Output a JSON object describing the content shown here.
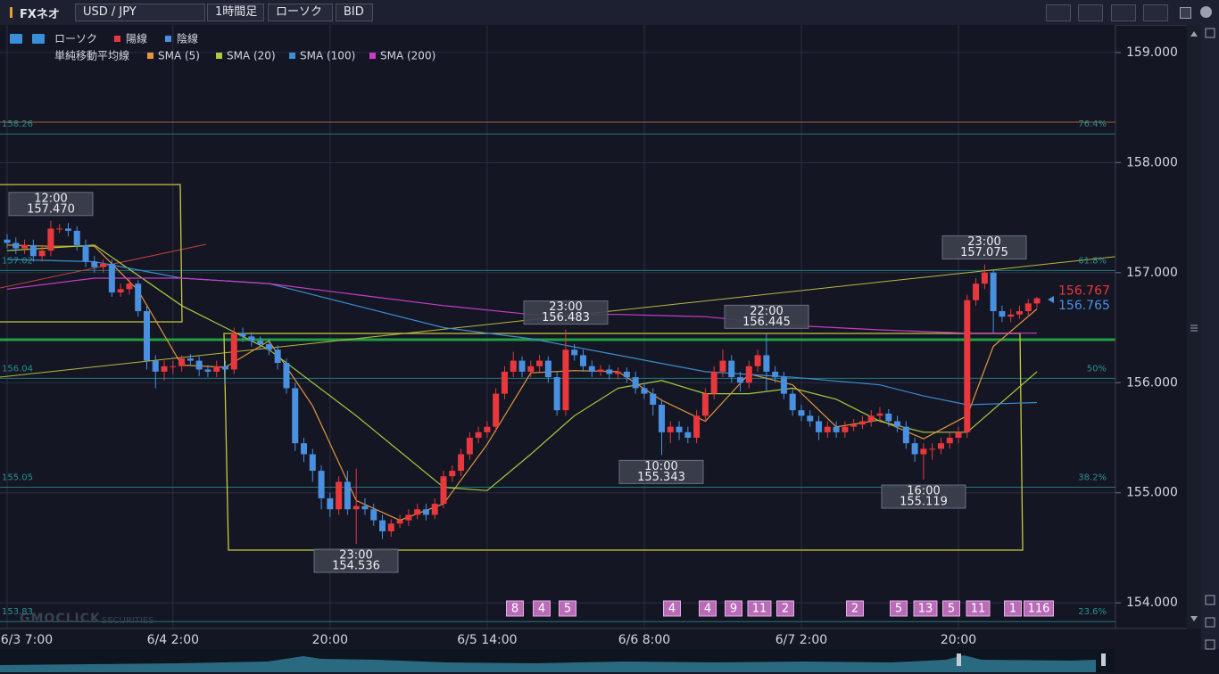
{
  "toolbar": {
    "app": "FXネオ",
    "pair": "USD / JPY",
    "timeframe": "1時間足",
    "chart_style": "ローソク",
    "price_type": "BID"
  },
  "watermark": {
    "brand": "GMOCLICK",
    "sub": "SECURITIES"
  },
  "chart_data": {
    "type": "candlestick",
    "candle_label": "ローソク",
    "up": {
      "name": "陽線",
      "color": "#e8383d"
    },
    "down": {
      "name": "陰線",
      "color": "#4a90e0"
    },
    "categories": [
      "6/3 7:00",
      null,
      null,
      null,
      null,
      null,
      null,
      null,
      null,
      null,
      null,
      null,
      null,
      null,
      null,
      null,
      null,
      null,
      null,
      "6/4 2:00",
      null,
      null,
      null,
      null,
      null,
      null,
      null,
      null,
      null,
      null,
      null,
      null,
      null,
      null,
      null,
      null,
      null,
      "20:00",
      null,
      null,
      null,
      null,
      null,
      null,
      null,
      null,
      null,
      null,
      null,
      null,
      null,
      null,
      null,
      null,
      null,
      "6/5 14:00",
      null,
      null,
      null,
      null,
      null,
      null,
      null,
      null,
      null,
      null,
      null,
      null,
      null,
      null,
      null,
      null,
      null,
      "6/6 8:00",
      null,
      null,
      null,
      null,
      null,
      null,
      null,
      null,
      null,
      null,
      null,
      null,
      null,
      null,
      null,
      null,
      null,
      "6/7 2:00",
      null,
      null,
      null,
      null,
      null,
      null,
      null,
      null,
      null,
      null,
      null,
      null,
      null,
      null,
      null,
      null,
      null,
      "20:00",
      null,
      null,
      null,
      null,
      null,
      null,
      null,
      null,
      null
    ],
    "open": [
      157.3,
      157.27,
      157.22,
      157.25,
      157.15,
      157.2,
      157.4,
      157.4,
      157.38,
      157.25,
      157.1,
      157.05,
      157.08,
      156.82,
      156.85,
      156.9,
      156.65,
      156.2,
      156.1,
      156.15,
      156.15,
      156.22,
      156.2,
      156.12,
      156.1,
      156.15,
      156.12,
      156.45,
      156.42,
      156.38,
      156.35,
      156.3,
      156.18,
      155.95,
      155.45,
      155.35,
      155.2,
      154.95,
      154.85,
      155.1,
      154.85,
      154.88,
      154.85,
      154.75,
      154.65,
      154.72,
      154.75,
      154.8,
      154.85,
      154.8,
      154.9,
      155.15,
      155.2,
      155.35,
      155.5,
      155.55,
      155.6,
      155.9,
      156.1,
      156.2,
      156.1,
      156.15,
      156.2,
      156.05,
      155.75,
      156.3,
      156.25,
      156.15,
      156.1,
      156.12,
      156.08,
      156.1,
      156.05,
      155.95,
      155.9,
      155.8,
      155.55,
      155.6,
      155.55,
      155.5,
      155.7,
      155.9,
      156.1,
      156.2,
      156.05,
      156.0,
      156.15,
      156.25,
      156.1,
      156.05,
      155.9,
      155.75,
      155.7,
      155.65,
      155.55,
      155.6,
      155.55,
      155.6,
      155.62,
      155.65,
      155.7,
      155.72,
      155.65,
      155.6,
      155.45,
      155.35,
      155.4,
      155.4,
      155.45,
      155.5,
      155.55,
      156.75,
      156.9,
      157.0,
      156.65,
      156.6,
      156.62,
      156.65,
      156.72
    ],
    "high": [
      157.35,
      157.32,
      157.3,
      157.3,
      157.25,
      157.47,
      157.44,
      157.45,
      157.42,
      157.3,
      157.15,
      157.12,
      157.12,
      156.9,
      156.95,
      156.93,
      156.7,
      156.25,
      156.2,
      156.2,
      156.25,
      156.26,
      156.24,
      156.16,
      156.2,
      156.2,
      156.5,
      156.5,
      156.46,
      156.42,
      156.4,
      156.34,
      156.22,
      156.0,
      155.5,
      155.4,
      155.25,
      155.0,
      155.15,
      155.2,
      155.22,
      154.95,
      154.9,
      154.8,
      154.76,
      154.8,
      154.85,
      154.9,
      154.9,
      154.95,
      155.2,
      155.25,
      155.4,
      155.55,
      155.6,
      155.65,
      155.95,
      156.15,
      156.28,
      156.24,
      156.2,
      156.25,
      156.24,
      156.1,
      156.483,
      156.35,
      156.3,
      156.2,
      156.16,
      156.16,
      156.14,
      156.14,
      156.1,
      156.0,
      155.95,
      155.85,
      155.65,
      155.65,
      155.6,
      155.75,
      155.95,
      156.15,
      156.3,
      156.25,
      156.1,
      156.2,
      156.3,
      156.445,
      156.15,
      156.1,
      155.95,
      155.8,
      155.75,
      155.7,
      155.65,
      155.65,
      155.65,
      155.67,
      155.7,
      155.75,
      155.78,
      155.76,
      155.7,
      155.65,
      155.5,
      155.45,
      155.45,
      155.5,
      155.55,
      155.6,
      156.8,
      156.95,
      157.075,
      157.02,
      156.7,
      156.67,
      156.7,
      156.76,
      156.78
    ],
    "low": [
      157.22,
      157.17,
      157.17,
      157.1,
      157.1,
      157.15,
      157.36,
      157.33,
      157.2,
      157.05,
      157.0,
      157.0,
      156.78,
      156.78,
      156.8,
      156.6,
      156.12,
      155.95,
      156.02,
      156.08,
      156.1,
      156.15,
      156.06,
      156.05,
      156.05,
      155.98,
      156.08,
      156.37,
      156.33,
      156.3,
      156.25,
      156.12,
      155.9,
      155.38,
      155.28,
      155.1,
      154.85,
      154.78,
      154.8,
      154.8,
      154.536,
      154.8,
      154.7,
      154.58,
      154.6,
      154.68,
      154.7,
      154.76,
      154.75,
      154.76,
      154.86,
      155.1,
      155.15,
      155.3,
      155.45,
      155.5,
      155.55,
      155.85,
      156.05,
      156.05,
      156.05,
      156.1,
      156.0,
      155.7,
      155.7,
      156.2,
      156.1,
      156.05,
      156.06,
      156.03,
      156.03,
      156.0,
      155.9,
      155.85,
      155.7,
      155.343,
      155.45,
      155.48,
      155.45,
      155.45,
      155.65,
      155.85,
      156.05,
      156.0,
      155.92,
      155.95,
      156.1,
      155.92,
      156.0,
      155.85,
      155.7,
      155.65,
      155.6,
      155.48,
      155.5,
      155.5,
      155.5,
      155.56,
      155.58,
      155.6,
      155.65,
      155.6,
      155.55,
      155.4,
      155.28,
      155.119,
      155.3,
      155.35,
      155.4,
      155.45,
      155.5,
      156.7,
      156.85,
      156.45,
      156.55,
      156.55,
      156.58,
      156.6,
      156.68
    ],
    "close": [
      157.27,
      157.22,
      157.25,
      157.15,
      157.2,
      157.4,
      157.4,
      157.38,
      157.25,
      157.1,
      157.05,
      157.08,
      156.82,
      156.85,
      156.9,
      156.65,
      156.2,
      156.1,
      156.15,
      156.15,
      156.22,
      156.2,
      156.12,
      156.1,
      156.15,
      156.12,
      156.45,
      156.42,
      156.38,
      156.35,
      156.3,
      156.18,
      155.95,
      155.45,
      155.35,
      155.2,
      154.95,
      154.85,
      155.1,
      154.85,
      154.88,
      154.85,
      154.75,
      154.65,
      154.72,
      154.75,
      154.8,
      154.85,
      154.8,
      154.9,
      155.15,
      155.2,
      155.35,
      155.5,
      155.55,
      155.6,
      155.9,
      156.1,
      156.2,
      156.1,
      156.15,
      156.2,
      156.05,
      155.75,
      156.3,
      156.25,
      156.15,
      156.1,
      156.12,
      156.08,
      156.1,
      156.05,
      155.95,
      155.9,
      155.8,
      155.55,
      155.6,
      155.55,
      155.5,
      155.7,
      155.9,
      156.1,
      156.2,
      156.05,
      156.0,
      156.15,
      156.25,
      156.1,
      156.05,
      155.9,
      155.75,
      155.7,
      155.65,
      155.55,
      155.6,
      155.55,
      155.6,
      155.62,
      155.65,
      155.7,
      155.72,
      155.65,
      155.6,
      155.45,
      155.35,
      155.4,
      155.4,
      155.45,
      155.5,
      155.55,
      156.75,
      156.9,
      157.0,
      156.65,
      156.6,
      156.62,
      156.65,
      156.72,
      156.767
    ],
    "overlay_label": "単純移動平均線",
    "overlays": [
      {
        "name": "SMA (5)",
        "color": "#e0963c",
        "x": [
          0,
          5,
          10,
          15,
          20,
          25,
          30,
          35,
          40,
          45,
          50,
          55,
          60,
          65,
          70,
          75,
          80,
          85,
          90,
          95,
          100,
          105,
          110,
          113,
          118
        ],
        "values": [
          157.25,
          157.24,
          157.24,
          156.84,
          156.16,
          156.14,
          156.38,
          155.79,
          154.93,
          154.75,
          154.9,
          155.44,
          156.09,
          156.11,
          156.1,
          155.84,
          155.65,
          156.08,
          155.98,
          155.6,
          155.66,
          155.49,
          155.7,
          156.33,
          156.67
        ]
      },
      {
        "name": "SMA (20)",
        "color": "#a8cc3c",
        "x": [
          0,
          10,
          20,
          30,
          40,
          50,
          55,
          60,
          65,
          70,
          75,
          80,
          85,
          90,
          95,
          100,
          105,
          110,
          118
        ],
        "values": [
          157.2,
          157.25,
          156.7,
          156.3,
          155.7,
          155.05,
          155.02,
          155.35,
          155.7,
          155.95,
          156.02,
          155.9,
          155.9,
          155.95,
          155.85,
          155.65,
          155.55,
          155.55,
          156.1
        ]
      },
      {
        "name": "SMA (100)",
        "color": "#3c8cd0",
        "x": [
          0,
          10,
          20,
          30,
          40,
          50,
          60,
          70,
          80,
          90,
          100,
          105,
          110,
          118
        ],
        "values": [
          157.12,
          157.1,
          156.95,
          156.9,
          156.7,
          156.5,
          156.4,
          156.25,
          156.1,
          156.05,
          155.98,
          155.88,
          155.8,
          155.82
        ]
      },
      {
        "name": "SMA (200)",
        "color": "#c83cc8",
        "x": [
          0,
          10,
          20,
          30,
          40,
          50,
          60,
          70,
          80,
          90,
          100,
          110,
          118
        ],
        "values": [
          156.85,
          156.95,
          156.95,
          156.9,
          156.8,
          156.7,
          156.62,
          156.62,
          156.6,
          156.52,
          156.48,
          156.45,
          156.45
        ]
      }
    ],
    "ylim": [
      153.77,
      159.25
    ],
    "yticks": [
      {
        "value": 154,
        "label": "154.000"
      },
      {
        "value": 155,
        "label": "155.000"
      },
      {
        "value": 156,
        "label": "156.000"
      },
      {
        "value": 157,
        "label": "157.000"
      },
      {
        "value": 158,
        "label": "158.000"
      },
      {
        "value": 159,
        "label": "159.000"
      }
    ],
    "grid": true,
    "price_tags": [
      {
        "value": 156.767,
        "color": "#e8383d"
      },
      {
        "value": 156.765,
        "color": "#4a90e0"
      }
    ],
    "fib_levels": [
      {
        "label": "76.4%",
        "value": 158.26
      },
      {
        "label": "61.8%",
        "value": 157.02
      },
      {
        "label": "50%",
        "value": 156.04
      },
      {
        "label": "38.2%",
        "value": 155.05
      },
      {
        "label": "23.6%",
        "value": 153.83
      }
    ],
    "annotations": [
      {
        "time": "12:00",
        "price": {
          "value": 157.47,
          "label": "157.470"
        }
      },
      {
        "time": "23:00",
        "price": {
          "value": 156.483,
          "label": "156.483"
        }
      },
      {
        "time": "22:00",
        "price": {
          "value": 156.445,
          "label": "156.445"
        }
      },
      {
        "time": "23:00",
        "price": {
          "value": 157.075,
          "label": "157.075"
        }
      },
      {
        "time": "10:00",
        "price": {
          "value": 155.343,
          "label": "155.343"
        }
      },
      {
        "time": "16:00",
        "price": {
          "value": 155.119,
          "label": "155.119"
        }
      },
      {
        "time": "23:00",
        "price": {
          "value": 154.536,
          "label": "154.536"
        }
      }
    ],
    "event_counts": [
      8,
      4,
      5,
      4,
      4,
      9,
      11,
      2,
      2,
      5,
      13,
      5,
      11,
      1,
      116
    ]
  }
}
